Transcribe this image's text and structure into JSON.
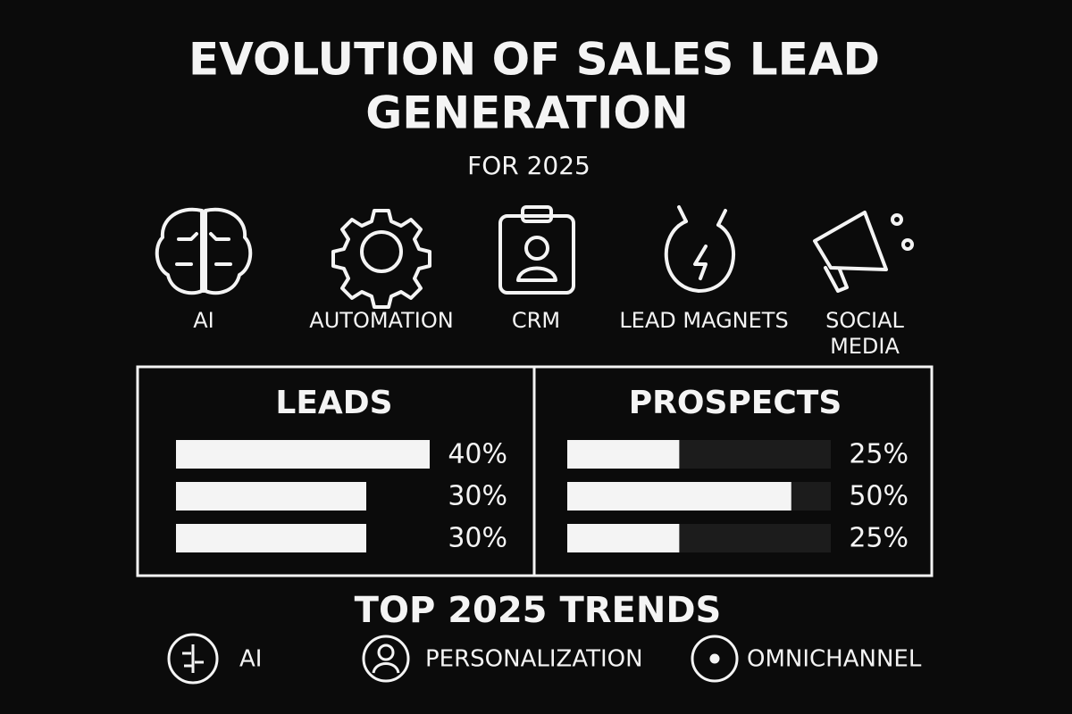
{
  "header": {
    "title_lines": [
      "EVOLUTION OF SALES LEAD",
      "GENERATION"
    ],
    "subtitle": "FOR 2025"
  },
  "icons": [
    {
      "label": "AI"
    },
    {
      "label": "AUTOMATION"
    },
    {
      "label": "CRM"
    },
    {
      "label": "LEAD MAGNETS"
    },
    {
      "label_lines": [
        "SOCIAL",
        "MEDIA"
      ]
    }
  ],
  "panels": [
    {
      "title": "LEADS",
      "values": [
        40,
        30,
        30
      ],
      "value_labels": [
        "40%",
        "30%",
        "30%"
      ],
      "track": false
    },
    {
      "title": "PROSPECTS",
      "values": [
        25,
        50,
        25
      ],
      "value_labels": [
        "25%",
        "50%",
        "25%"
      ],
      "track": true
    }
  ],
  "trends": {
    "title": "TOP 2025 TRENDS",
    "items": [
      "AI",
      "PERSONALIZATION",
      "OMNICHANNEL"
    ]
  }
}
